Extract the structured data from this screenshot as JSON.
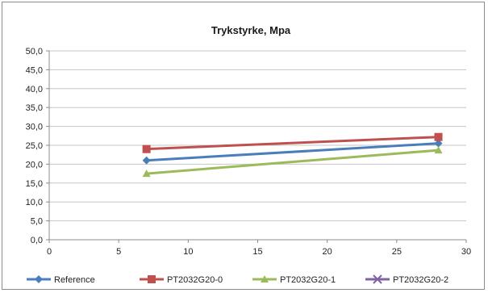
{
  "chart_data": {
    "type": "line",
    "title": "Trykstyrke, Mpa",
    "xlabel": "",
    "ylabel": "",
    "xlim": [
      0,
      30
    ],
    "ylim": [
      0,
      50
    ],
    "x_ticks": [
      "0",
      "5",
      "10",
      "15",
      "20",
      "25",
      "30"
    ],
    "y_ticks": [
      "0,0",
      "5,0",
      "10,0",
      "15,0",
      "20,0",
      "25,0",
      "30,0",
      "35,0",
      "40,0",
      "45,0",
      "50,0"
    ],
    "grid": true,
    "legend_position": "bottom",
    "series": [
      {
        "name": "Reference",
        "color": "#4a7ebb",
        "marker": "diamond",
        "x": [
          7,
          28
        ],
        "y": [
          21.0,
          25.5
        ]
      },
      {
        "name": "PT2032G20-0",
        "color": "#c0504d",
        "marker": "square",
        "x": [
          7,
          28
        ],
        "y": [
          24.0,
          27.2
        ]
      },
      {
        "name": "PT2032G20-1",
        "color": "#9bbb59",
        "marker": "triangle",
        "x": [
          7,
          28
        ],
        "y": [
          17.5,
          23.7
        ]
      },
      {
        "name": "PT2032G20-2",
        "color": "#8064a2",
        "marker": "x",
        "x": [],
        "y": []
      }
    ]
  }
}
